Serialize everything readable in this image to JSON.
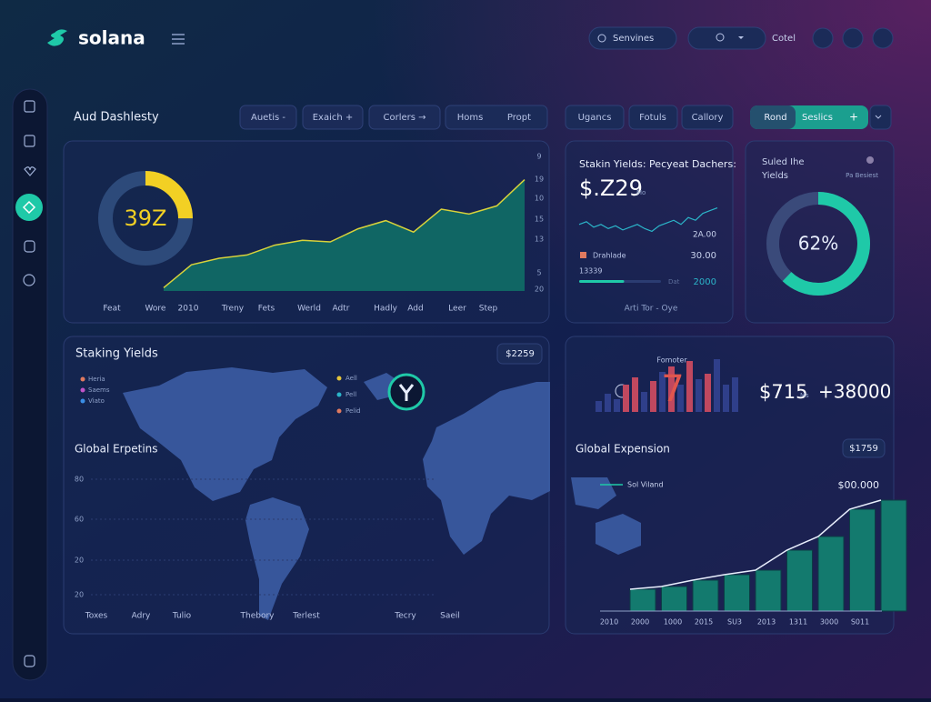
{
  "header": {
    "logo": "solana",
    "search": "Senvines",
    "status": "Cotel"
  },
  "toolbar": {
    "title": "Aud Dashlesty",
    "filters": [
      "Auetis -",
      "Exaich +",
      "Corlers →",
      "Homs",
      "Propt",
      "Ugancs",
      "Fotuls",
      "Callory"
    ],
    "primary": [
      "Rond",
      "Seslics"
    ],
    "add": "+"
  },
  "overview": {
    "donut": {
      "value": 25,
      "label": "39Z",
      "color": "#f2d024"
    },
    "area": {
      "values": [
        2,
        16,
        20,
        22,
        28,
        31,
        30,
        38,
        43,
        36,
        50,
        47,
        52,
        68
      ],
      "ylim": [
        0,
        75
      ],
      "line_color": "#d8d23a",
      "fill_color": "#0f6e66",
      "y_labels": [
        "9",
        "19",
        "10",
        "15",
        "13",
        "5",
        "20"
      ],
      "x_labels": [
        "Feat",
        "Wore",
        "2010",
        "Treny",
        "Fets",
        "Werld",
        "Adtr",
        "Hadly",
        "Add",
        "Leer",
        "Step"
      ]
    }
  },
  "yields": {
    "title": "Stakin Yields: Pecyeat Dachers:",
    "amount": "$.Z29",
    "unit": "Mo",
    "spark": {
      "values": [
        30,
        32,
        28,
        30,
        27,
        29,
        26,
        28,
        30,
        27,
        25,
        29,
        31,
        33,
        30,
        35,
        33,
        38,
        40,
        42
      ],
      "ylim": [
        20,
        45
      ]
    },
    "high": "2A.00",
    "rows": [
      {
        "label": "Drahlade",
        "value": "30.00"
      },
      {
        "label": "13339"
      },
      {
        "label": "Dat",
        "value": "2000"
      }
    ],
    "progress": 55,
    "footer": "Arti Tor - Oye"
  },
  "ring_card": {
    "title": [
      "Suled Ihe",
      "Yields"
    ],
    "note": "Pa Besiest",
    "ring": {
      "value": 62,
      "label": "62%"
    }
  },
  "map_panel": {
    "title": "Staking Yields",
    "badge": "$2259",
    "legend_left": [
      {
        "label": "Heria",
        "color": "#e07a5f"
      },
      {
        "label": "Saems",
        "color": "#c054c8"
      },
      {
        "label": "Viato",
        "color": "#3a8ee6"
      }
    ],
    "legend_right": [
      {
        "label": "Aell",
        "color": "#e5c53a"
      },
      {
        "label": "Pell",
        "color": "#2bb5c9"
      },
      {
        "label": "Pelid",
        "color": "#e07a5f"
      }
    ],
    "subtitle": "Global Erpetins",
    "y_labels": [
      "80",
      "60",
      "20",
      "20"
    ],
    "x_labels": [
      "Toxes",
      "Adry",
      "Tulio",
      "Thebory",
      "Terlest",
      "Tecry",
      "Saeil"
    ]
  },
  "bars_panel": {
    "label": "Fomoter",
    "big": "7",
    "amount": "$715",
    "unit": "Ms",
    "delta": "+38000",
    "values": [
      12,
      20,
      14,
      30,
      38,
      22,
      34,
      44,
      50,
      30,
      56,
      36,
      42,
      58,
      30,
      38
    ],
    "ylim": [
      0,
      60
    ],
    "colors": [
      "#2f3f8a",
      "#2f3f8a",
      "#2f3f8a",
      "#c0485f",
      "#c0485f",
      "#2f3f8a",
      "#c0485f",
      "#2f3f8a",
      "#c0485f",
      "#2f3f8a",
      "#c0485f",
      "#2f3f8a",
      "#c0485f",
      "#2f3f8a",
      "#2f3f8a",
      "#2f3f8a"
    ]
  },
  "expense": {
    "title": "Global Expension",
    "badge": "$1759",
    "legend": "Sol Viland",
    "peak": "$00.000",
    "values": [
      24,
      27,
      34,
      40,
      45,
      67,
      82,
      112,
      122
    ],
    "ylim": [
      0,
      130
    ],
    "color": "#137a6e",
    "x_labels": [
      "2010",
      "2000",
      "1000",
      "2015",
      "SU3",
      "2013",
      "1311",
      "3000",
      "S011"
    ]
  }
}
